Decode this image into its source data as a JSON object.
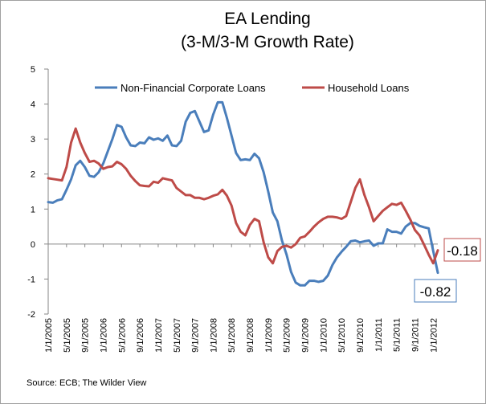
{
  "chart_data": {
    "type": "line",
    "title_line1": "EA Lending",
    "title_line2": "(3-M/3-M Growth Rate)",
    "source": "Source: ECB; The Wilder View",
    "ylim": [
      -2,
      5
    ],
    "yticks": [
      "5",
      "4",
      "3",
      "2",
      "1",
      "0",
      "-1",
      "-2"
    ],
    "ytick_values": [
      5,
      4,
      3,
      2,
      1,
      0,
      -1,
      -2
    ],
    "x_tick_labels": [
      "1/1/2005",
      "5/1/2005",
      "9/1/2005",
      "1/1/2006",
      "5/1/2006",
      "9/1/2006",
      "1/1/2007",
      "5/1/2007",
      "9/1/2007",
      "1/1/2008",
      "5/1/2008",
      "9/1/2008",
      "1/1/2009",
      "5/1/2009",
      "9/1/2009",
      "1/1/2010",
      "5/1/2010",
      "9/1/2010",
      "1/1/2011",
      "5/1/2011",
      "9/1/2011",
      "1/1/2012"
    ],
    "x_start": "2005-01",
    "x_end": "2012-02",
    "legend_position": "top",
    "grid": false,
    "series": [
      {
        "name": "Non-Financial Corporate Loans",
        "color": "#4a7ebb",
        "x": [
          "2005-01",
          "2005-02",
          "2005-03",
          "2005-04",
          "2005-05",
          "2005-06",
          "2005-07",
          "2005-08",
          "2005-09",
          "2005-10",
          "2005-11",
          "2005-12",
          "2006-01",
          "2006-02",
          "2006-03",
          "2006-04",
          "2006-05",
          "2006-06",
          "2006-07",
          "2006-08",
          "2006-09",
          "2006-10",
          "2006-11",
          "2006-12",
          "2007-01",
          "2007-02",
          "2007-03",
          "2007-04",
          "2007-05",
          "2007-06",
          "2007-07",
          "2007-08",
          "2007-09",
          "2007-10",
          "2007-11",
          "2007-12",
          "2008-01",
          "2008-02",
          "2008-03",
          "2008-04",
          "2008-05",
          "2008-06",
          "2008-07",
          "2008-08",
          "2008-09",
          "2008-10",
          "2008-11",
          "2008-12",
          "2009-01",
          "2009-02",
          "2009-03",
          "2009-04",
          "2009-05",
          "2009-06",
          "2009-07",
          "2009-08",
          "2009-09",
          "2009-10",
          "2009-11",
          "2009-12",
          "2010-01",
          "2010-02",
          "2010-03",
          "2010-04",
          "2010-05",
          "2010-06",
          "2010-07",
          "2010-08",
          "2010-09",
          "2010-10",
          "2010-11",
          "2010-12",
          "2011-01",
          "2011-02",
          "2011-03",
          "2011-04",
          "2011-05",
          "2011-06",
          "2011-07",
          "2011-08",
          "2011-09",
          "2011-10",
          "2011-11",
          "2011-12",
          "2012-01",
          "2012-02"
        ],
        "values": [
          1.2,
          1.18,
          1.25,
          1.28,
          1.55,
          1.85,
          2.25,
          2.38,
          2.2,
          1.95,
          1.92,
          2.05,
          2.3,
          2.65,
          3.0,
          3.4,
          3.35,
          3.05,
          2.82,
          2.8,
          2.9,
          2.88,
          3.05,
          2.98,
          3.02,
          2.95,
          3.1,
          2.82,
          2.8,
          2.95,
          3.5,
          3.75,
          3.8,
          3.5,
          3.2,
          3.25,
          3.7,
          4.05,
          4.05,
          3.6,
          3.1,
          2.6,
          2.4,
          2.42,
          2.4,
          2.58,
          2.45,
          2.05,
          1.5,
          0.9,
          0.65,
          0.1,
          -0.3,
          -0.8,
          -1.1,
          -1.18,
          -1.18,
          -1.05,
          -1.05,
          -1.08,
          -1.05,
          -0.9,
          -0.6,
          -0.38,
          -0.22,
          -0.08,
          0.08,
          0.1,
          0.05,
          0.08,
          0.1,
          -0.05,
          0.02,
          0.02,
          0.42,
          0.35,
          0.35,
          0.3,
          0.5,
          0.6,
          0.6,
          0.52,
          0.48,
          0.45,
          -0.2,
          -0.82
        ]
      },
      {
        "name": "Household Loans",
        "color": "#be4b48",
        "x": [
          "2005-01",
          "2005-02",
          "2005-03",
          "2005-04",
          "2005-05",
          "2005-06",
          "2005-07",
          "2005-08",
          "2005-09",
          "2005-10",
          "2005-11",
          "2005-12",
          "2006-01",
          "2006-02",
          "2006-03",
          "2006-04",
          "2006-05",
          "2006-06",
          "2006-07",
          "2006-08",
          "2006-09",
          "2006-10",
          "2006-11",
          "2006-12",
          "2007-01",
          "2007-02",
          "2007-03",
          "2007-04",
          "2007-05",
          "2007-06",
          "2007-07",
          "2007-08",
          "2007-09",
          "2007-10",
          "2007-11",
          "2007-12",
          "2008-01",
          "2008-02",
          "2008-03",
          "2008-04",
          "2008-05",
          "2008-06",
          "2008-07",
          "2008-08",
          "2008-09",
          "2008-10",
          "2008-11",
          "2008-12",
          "2009-01",
          "2009-02",
          "2009-03",
          "2009-04",
          "2009-05",
          "2009-06",
          "2009-07",
          "2009-08",
          "2009-09",
          "2009-10",
          "2009-11",
          "2009-12",
          "2010-01",
          "2010-02",
          "2010-03",
          "2010-04",
          "2010-05",
          "2010-06",
          "2010-07",
          "2010-08",
          "2010-09",
          "2010-10",
          "2010-11",
          "2010-12",
          "2011-01",
          "2011-02",
          "2011-03",
          "2011-04",
          "2011-05",
          "2011-06",
          "2011-07",
          "2011-08",
          "2011-09",
          "2011-10",
          "2011-11",
          "2011-12",
          "2012-01",
          "2012-02"
        ],
        "values": [
          1.88,
          1.86,
          1.84,
          1.82,
          2.2,
          2.9,
          3.3,
          2.9,
          2.6,
          2.35,
          2.38,
          2.3,
          2.15,
          2.2,
          2.22,
          2.35,
          2.28,
          2.15,
          1.95,
          1.8,
          1.68,
          1.66,
          1.65,
          1.78,
          1.75,
          1.88,
          1.85,
          1.82,
          1.6,
          1.5,
          1.4,
          1.4,
          1.32,
          1.32,
          1.28,
          1.32,
          1.38,
          1.42,
          1.55,
          1.38,
          1.1,
          0.6,
          0.35,
          0.25,
          0.55,
          0.72,
          0.65,
          0.05,
          -0.38,
          -0.55,
          -0.2,
          -0.08,
          -0.05,
          -0.1,
          0.0,
          0.18,
          0.22,
          0.35,
          0.5,
          0.62,
          0.72,
          0.78,
          0.78,
          0.76,
          0.72,
          0.8,
          1.2,
          1.6,
          1.85,
          1.4,
          1.05,
          0.65,
          0.8,
          0.95,
          1.05,
          1.15,
          1.12,
          1.18,
          0.95,
          0.7,
          0.4,
          0.25,
          -0.02,
          -0.3,
          -0.55,
          -0.18
        ]
      }
    ],
    "annotations": [
      {
        "label": "-0.18",
        "series": "Household Loans",
        "border_color": "#be4b48"
      },
      {
        "label": "-0.82",
        "series": "Non-Financial Corporate Loans",
        "border_color": "#4a7ebb"
      }
    ]
  }
}
